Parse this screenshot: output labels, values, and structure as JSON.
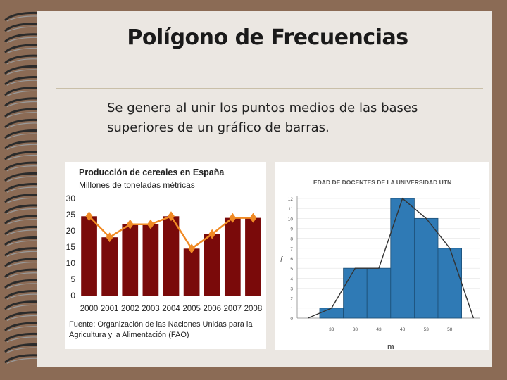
{
  "slide": {
    "title": "Polígono de Frecuencias",
    "body": "Se genera al unir los puntos medios de las bases superiores de un gráfico de barras."
  },
  "chart_data": [
    {
      "type": "bar",
      "title": "Producción de cereales en España",
      "subtitle": "Millones de toneladas métricas",
      "categories": [
        "2000",
        "2001",
        "2002",
        "2003",
        "2004",
        "2005",
        "2006",
        "2007",
        "2008"
      ],
      "values": [
        24.5,
        18,
        22,
        22,
        24.5,
        14.5,
        19,
        24,
        24
      ],
      "overlay_line": true,
      "yticks": [
        0,
        5,
        10,
        15,
        20,
        25,
        30
      ],
      "ylim": [
        0,
        30
      ],
      "source": "Fuente: Organización de las Naciones Unidas para la Agricultura y la Alimentación (FAO)",
      "bar_color": "#7a0a0a",
      "line_color": "#f08a24"
    },
    {
      "type": "bar",
      "title": "EDAD DE DOCENTES DE LA UNIVERSIDAD UTN",
      "categories": [
        "33",
        "38",
        "43",
        "48",
        "53",
        "58"
      ],
      "values": [
        1,
        5,
        5,
        12,
        10,
        7
      ],
      "polygon_endpoints": [
        "28",
        "63"
      ],
      "yticks": [
        0,
        1,
        2,
        3,
        4,
        5,
        6,
        7,
        8,
        9,
        10,
        11,
        12
      ],
      "ylim": [
        0,
        12
      ],
      "ylabel": "f",
      "xlabel": "m",
      "bar_color": "#2f7ab5",
      "line_color": "#333333"
    }
  ]
}
